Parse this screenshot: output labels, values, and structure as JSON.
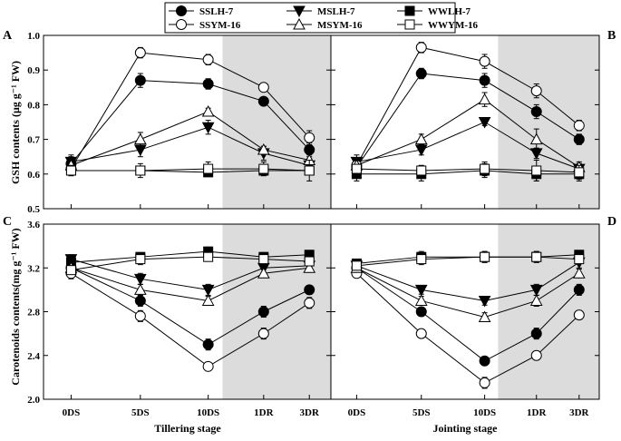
{
  "figure": {
    "legend": [
      "SSLH-7",
      "MSLH-7",
      "WWLH-7",
      "SSYM-16",
      "MSYM-16",
      "WWYM-16"
    ],
    "ylabel_top": "GSH contents (μg g⁻¹ FW)",
    "ylabel_bottom": "Carotenoids contents(mg g⁻¹ FW)",
    "xlabel_left": "Tillering stage",
    "xlabel_right": "Jointing stage"
  },
  "chart_data": [
    {
      "type": "line",
      "panel": "A",
      "title": "",
      "xlabel": "",
      "ylabel": "GSH contents (μg g⁻¹ FW)",
      "categories": [
        "0DS",
        "5DS",
        "10DS",
        "1DR",
        "3DR"
      ],
      "yticks": [
        "0.5",
        "0.6",
        "0.7",
        "0.8",
        "0.9",
        "1.0"
      ],
      "ylim": [
        0.5,
        1.0
      ],
      "shaded_from": "1DR",
      "series": [
        {
          "name": "SSLH-7",
          "values": [
            0.63,
            0.87,
            0.86,
            0.81,
            0.67
          ],
          "errors": [
            0.02,
            0.02,
            0.015,
            0.01,
            0.02
          ]
        },
        {
          "name": "MSLH-7",
          "values": [
            0.635,
            0.67,
            0.735,
            0.66,
            0.625
          ],
          "errors": [
            0.02,
            0.02,
            0.02,
            0.02,
            0.02
          ]
        },
        {
          "name": "WWLH-7",
          "values": [
            0.61,
            0.61,
            0.605,
            0.61,
            0.61
          ],
          "errors": [
            0.01,
            0.01,
            0.01,
            0.01,
            0.01
          ]
        },
        {
          "name": "SSYM-16",
          "values": [
            0.615,
            0.95,
            0.93,
            0.85,
            0.705
          ],
          "errors": [
            0.015,
            0.015,
            0.015,
            0.01,
            0.02
          ]
        },
        {
          "name": "MSYM-16",
          "values": [
            0.625,
            0.7,
            0.78,
            0.67,
            0.64
          ],
          "errors": [
            0.02,
            0.02,
            0.01,
            0.01,
            0.015
          ]
        },
        {
          "name": "WWYM-16",
          "values": [
            0.61,
            0.61,
            0.615,
            0.615,
            0.61
          ],
          "errors": [
            0.015,
            0.02,
            0.02,
            0.02,
            0.03
          ]
        }
      ]
    },
    {
      "type": "line",
      "panel": "B",
      "title": "",
      "xlabel": "",
      "ylabel": "",
      "categories": [
        "0DS",
        "5DS",
        "10DS",
        "1DR",
        "3DR"
      ],
      "yticks": [
        "0.5",
        "0.6",
        "0.7",
        "0.8",
        "0.9",
        "1.0"
      ],
      "ylim": [
        0.5,
        1.0
      ],
      "shaded_from": "1DR",
      "series": [
        {
          "name": "SSLH-7",
          "values": [
            0.62,
            0.89,
            0.87,
            0.78,
            0.7
          ],
          "errors": [
            0.02,
            0.015,
            0.02,
            0.02,
            0.015
          ]
        },
        {
          "name": "MSLH-7",
          "values": [
            0.635,
            0.67,
            0.75,
            0.66,
            0.615
          ],
          "errors": [
            0.02,
            0.015,
            0.01,
            0.015,
            0.015
          ]
        },
        {
          "name": "WWLH-7",
          "values": [
            0.6,
            0.6,
            0.61,
            0.6,
            0.6
          ],
          "errors": [
            0.02,
            0.02,
            0.02,
            0.02,
            0.02
          ]
        },
        {
          "name": "SSYM-16",
          "values": [
            0.625,
            0.965,
            0.925,
            0.84,
            0.74
          ],
          "errors": [
            0.02,
            0.015,
            0.02,
            0.02,
            0.015
          ]
        },
        {
          "name": "MSYM-16",
          "values": [
            0.625,
            0.7,
            0.815,
            0.7,
            0.62
          ],
          "errors": [
            0.02,
            0.015,
            0.02,
            0.03,
            0.015
          ]
        },
        {
          "name": "WWYM-16",
          "values": [
            0.615,
            0.61,
            0.615,
            0.61,
            0.605
          ],
          "errors": [
            0.01,
            0.015,
            0.02,
            0.03,
            0.02
          ]
        }
      ]
    },
    {
      "type": "line",
      "panel": "C",
      "title": "",
      "xlabel": "Tillering stage",
      "ylabel": "Carotenoids contents(mg g⁻¹ FW)",
      "categories": [
        "0DS",
        "5DS",
        "10DS",
        "1DR",
        "3DR"
      ],
      "yticks": [
        "2.0",
        "2.4",
        "2.8",
        "3.2",
        "3.6"
      ],
      "ylim": [
        2.0,
        3.6
      ],
      "shaded_from": "1DR",
      "series": [
        {
          "name": "SSLH-7",
          "values": [
            3.2,
            2.9,
            2.5,
            2.8,
            3.0
          ],
          "errors": [
            0.04,
            0.05,
            0.05,
            0.05,
            0.04
          ]
        },
        {
          "name": "MSLH-7",
          "values": [
            3.28,
            3.1,
            3.0,
            3.2,
            3.22
          ],
          "errors": [
            0.04,
            0.05,
            0.05,
            0.04,
            0.04
          ]
        },
        {
          "name": "WWLH-7",
          "values": [
            3.25,
            3.3,
            3.35,
            3.3,
            3.32
          ],
          "errors": [
            0.04,
            0.04,
            0.04,
            0.04,
            0.04
          ]
        },
        {
          "name": "SSYM-16",
          "values": [
            3.15,
            2.76,
            2.3,
            2.6,
            2.88
          ],
          "errors": [
            0.05,
            0.05,
            0.04,
            0.05,
            0.05
          ]
        },
        {
          "name": "MSYM-16",
          "values": [
            3.2,
            3.0,
            2.9,
            3.15,
            3.2
          ],
          "errors": [
            0.04,
            0.05,
            0.04,
            0.04,
            0.04
          ]
        },
        {
          "name": "WWYM-16",
          "values": [
            3.18,
            3.28,
            3.3,
            3.28,
            3.26
          ],
          "errors": [
            0.04,
            0.05,
            0.04,
            0.04,
            0.04
          ]
        }
      ]
    },
    {
      "type": "line",
      "panel": "D",
      "title": "",
      "xlabel": "Jointing stage",
      "ylabel": "",
      "categories": [
        "0DS",
        "5DS",
        "10DS",
        "1DR",
        "3DR"
      ],
      "yticks": [
        "2.0",
        "2.4",
        "2.8",
        "3.2",
        "3.6"
      ],
      "ylim": [
        2.0,
        3.6
      ],
      "shaded_from": "1DR",
      "series": [
        {
          "name": "SSLH-7",
          "values": [
            3.2,
            2.8,
            2.35,
            2.6,
            3.0
          ],
          "errors": [
            0.04,
            0.04,
            0.04,
            0.05,
            0.05
          ]
        },
        {
          "name": "MSLH-7",
          "values": [
            3.22,
            3.0,
            2.9,
            3.0,
            3.25
          ],
          "errors": [
            0.04,
            0.04,
            0.04,
            0.05,
            0.05
          ]
        },
        {
          "name": "WWLH-7",
          "values": [
            3.24,
            3.3,
            3.3,
            3.3,
            3.32
          ],
          "errors": [
            0.04,
            0.05,
            0.05,
            0.05,
            0.04
          ]
        },
        {
          "name": "SSYM-16",
          "values": [
            3.15,
            2.6,
            2.15,
            2.4,
            2.77
          ],
          "errors": [
            0.04,
            0.04,
            0.05,
            0.04,
            0.04
          ]
        },
        {
          "name": "MSYM-16",
          "values": [
            3.2,
            2.9,
            2.75,
            2.9,
            3.15
          ],
          "errors": [
            0.04,
            0.04,
            0.04,
            0.05,
            0.04
          ]
        },
        {
          "name": "WWYM-16",
          "values": [
            3.22,
            3.28,
            3.3,
            3.3,
            3.28
          ],
          "errors": [
            0.04,
            0.05,
            0.05,
            0.05,
            0.04
          ]
        }
      ]
    }
  ]
}
